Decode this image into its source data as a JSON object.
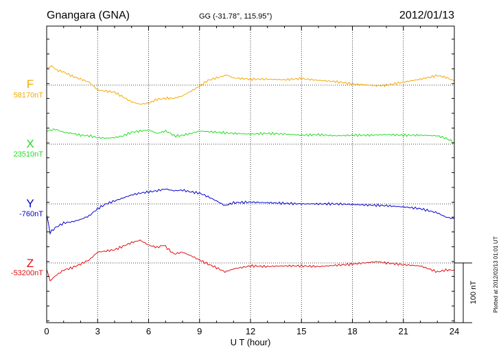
{
  "header": {
    "station": "Gnangara (GNA)",
    "coords": "GG (-31.78°, 115.95°)",
    "date": "2012/01/13"
  },
  "plotted_note": "Plotted at 2012/02/13 01:01 UT",
  "scale_bar": {
    "label": "100 nT",
    "value_nT": 100
  },
  "chart_data": {
    "type": "line",
    "xlabel": "U T (hour)",
    "xlim": [
      0,
      24
    ],
    "xticks": [
      0,
      3,
      6,
      9,
      12,
      15,
      18,
      21,
      24
    ],
    "xtick_labels": [
      "0",
      "3",
      "6",
      "9",
      "12",
      "15",
      "18",
      "21",
      "24"
    ],
    "grid": true,
    "series": [
      {
        "name": "F",
        "baseline_label": "58170nT",
        "baseline_nT": 58170,
        "color": "#f5a800",
        "x": [
          0,
          0.3,
          0.6,
          1.0,
          1.5,
          2.0,
          2.5,
          3.0,
          3.5,
          4.0,
          4.5,
          5.0,
          5.5,
          6.0,
          6.5,
          7.0,
          7.5,
          8.0,
          8.5,
          9.0,
          9.5,
          10.0,
          10.6,
          11.0,
          12.0,
          13.0,
          14.0,
          15.0,
          16.0,
          17.0,
          18.0,
          19.0,
          19.5,
          20.0,
          21.0,
          22.0,
          23.0,
          23.5,
          24.0
        ],
        "y": [
          28,
          32,
          25,
          22,
          15,
          10,
          5,
          -8,
          -10,
          -12,
          -20,
          -28,
          -32,
          -30,
          -24,
          -22,
          -22,
          -18,
          -10,
          -2,
          8,
          12,
          17,
          12,
          10,
          10,
          9,
          11,
          8,
          6,
          2,
          0,
          -1,
          0,
          5,
          10,
          16,
          13,
          7
        ]
      },
      {
        "name": "X",
        "baseline_label": "23510nT",
        "baseline_nT": 23510,
        "color": "#22dd22",
        "x": [
          0,
          0.5,
          1.0,
          1.5,
          2.0,
          2.5,
          3.0,
          3.5,
          4.0,
          4.5,
          5.0,
          5.5,
          6.0,
          6.5,
          7.0,
          7.3,
          7.5,
          7.8,
          8.0,
          8.5,
          9.0,
          10.0,
          11.0,
          12.0,
          13.0,
          14.0,
          15.0,
          16.0,
          17.0,
          18.0,
          19.0,
          20.0,
          21.0,
          22.0,
          23.0,
          23.5,
          24.0
        ],
        "y": [
          22,
          25,
          20,
          18,
          15,
          14,
          11,
          10,
          11,
          14,
          20,
          22,
          24,
          18,
          22,
          18,
          14,
          14,
          15,
          18,
          22,
          20,
          18,
          17,
          18,
          17,
          15,
          16,
          14,
          15,
          15,
          16,
          15,
          15,
          14,
          10,
          3
        ]
      },
      {
        "name": "Y",
        "baseline_label": "-760nT",
        "baseline_nT": -760,
        "color": "#0000cc",
        "x": [
          0,
          0.2,
          0.5,
          1.0,
          1.5,
          2.0,
          2.5,
          3.0,
          3.5,
          4.0,
          4.5,
          5.0,
          5.5,
          6.0,
          6.5,
          7.0,
          7.5,
          8.0,
          8.5,
          9.0,
          9.5,
          10.0,
          10.5,
          11.0,
          12.0,
          13.0,
          14.0,
          15.0,
          16.0,
          17.0,
          18.0,
          19.0,
          20.0,
          21.0,
          22.0,
          23.0,
          23.5,
          24.0
        ],
        "y": [
          -18,
          -48,
          -40,
          -32,
          -30,
          -26,
          -20,
          -8,
          0,
          5,
          10,
          15,
          18,
          20,
          22,
          25,
          22,
          23,
          20,
          18,
          12,
          5,
          -3,
          2,
          3,
          2,
          1,
          0,
          0,
          0,
          -1,
          -2,
          -3,
          -5,
          -8,
          -15,
          -22,
          -25
        ]
      },
      {
        "name": "Z",
        "baseline_label": "-53200nT",
        "baseline_nT": -53200,
        "color": "#dd1111",
        "x": [
          0,
          0.2,
          0.5,
          1.0,
          1.5,
          2.0,
          2.5,
          3.0,
          3.5,
          4.0,
          4.5,
          5.0,
          5.5,
          6.0,
          6.5,
          6.9,
          7.2,
          7.5,
          8.0,
          8.5,
          9.0,
          9.5,
          10.0,
          10.5,
          11.0,
          12.0,
          13.0,
          14.0,
          15.0,
          16.0,
          17.0,
          18.0,
          19.0,
          19.5,
          20.0,
          21.0,
          22.0,
          23.0,
          23.5,
          24.0
        ],
        "y": [
          -10,
          -30,
          -22,
          -12,
          -8,
          -2,
          5,
          18,
          20,
          22,
          28,
          34,
          38,
          30,
          26,
          30,
          22,
          15,
          18,
          12,
          5,
          -2,
          -8,
          -15,
          -10,
          -5,
          -6,
          -5,
          -5,
          -6,
          -4,
          -2,
          1,
          2,
          0,
          -3,
          -5,
          -15,
          -12,
          -12
        ]
      }
    ]
  }
}
